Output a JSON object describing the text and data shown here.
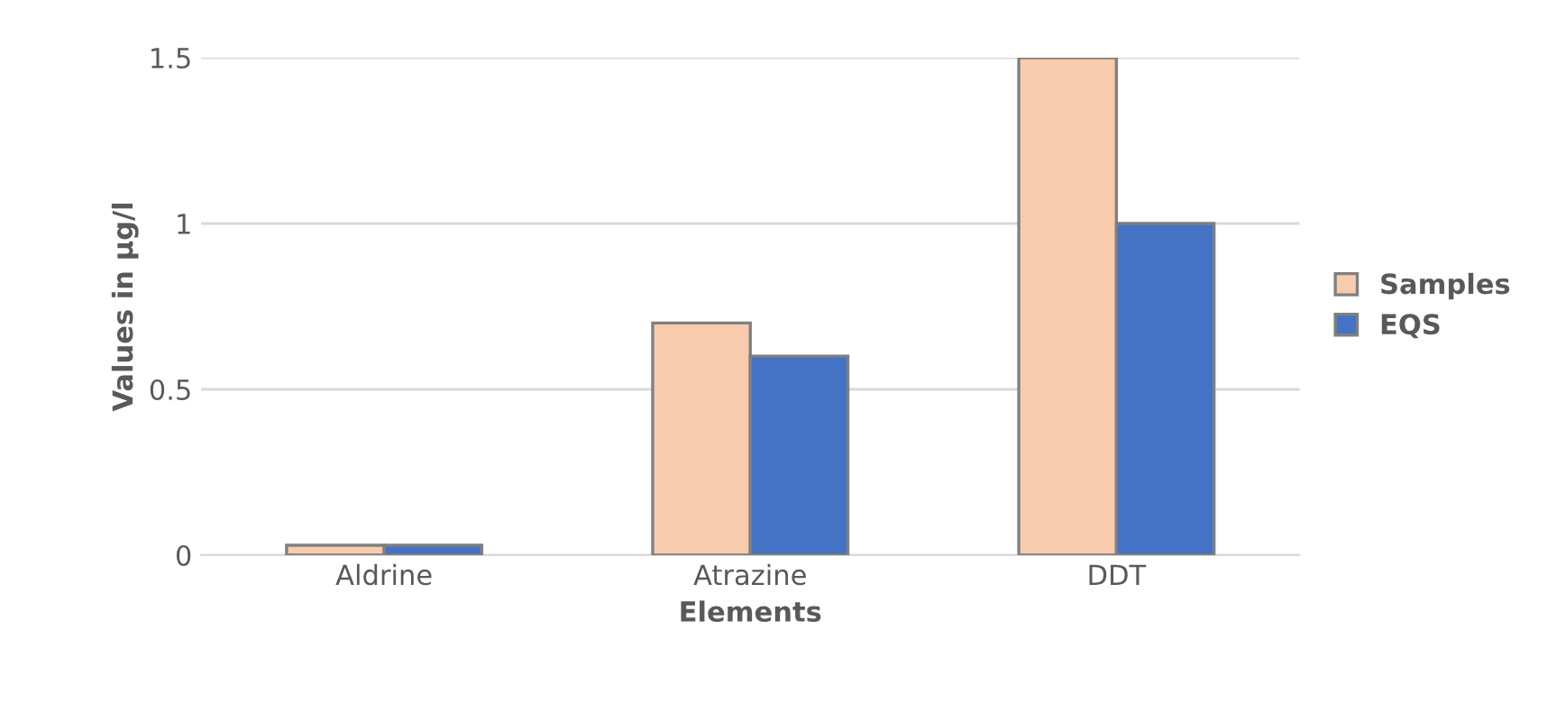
{
  "chart_data": {
    "type": "bar",
    "xlabel": "Elements",
    "ylabel": "Values in µg/l",
    "categories": [
      "Aldrine",
      "Atrazine",
      "DDT"
    ],
    "series": [
      {
        "name": "Samples",
        "color": "#f8cbad",
        "values": [
          0.03,
          0.7,
          1.5
        ]
      },
      {
        "name": "EQS",
        "color": "#4472c4",
        "values": [
          0.03,
          0.6,
          1.0
        ]
      }
    ],
    "ylim": [
      0,
      1.5
    ],
    "yticks": [
      0,
      {
        "value": 0.5,
        "label": "0.5"
      },
      1,
      {
        "value": 1.5,
        "label": "1.5"
      }
    ],
    "grid": "y",
    "legend": "right"
  }
}
